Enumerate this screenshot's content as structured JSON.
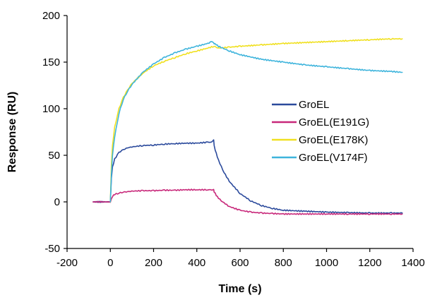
{
  "chart_data": {
    "type": "line",
    "title": "",
    "xlabel": "Time (s)",
    "ylabel": "Response (RU)",
    "xlim": [
      -200,
      1400
    ],
    "ylim": [
      -50,
      200
    ],
    "x_ticks": [
      -200,
      0,
      200,
      400,
      600,
      800,
      1000,
      1200,
      1400
    ],
    "y_ticks": [
      -50,
      0,
      50,
      100,
      150,
      200
    ],
    "grid": false,
    "legend_position": "right",
    "series": [
      {
        "name": "GroEL",
        "color": "#2b4a9c",
        "x": [
          -80,
          -10,
          0,
          5,
          10,
          20,
          40,
          60,
          80,
          100,
          150,
          200,
          250,
          300,
          350,
          400,
          450,
          470,
          478,
          480,
          490,
          500,
          520,
          550,
          600,
          650,
          700,
          750,
          800,
          900,
          1000,
          1100,
          1200,
          1300,
          1350
        ],
        "values": [
          0,
          0,
          0,
          25,
          37,
          46,
          53,
          56,
          58,
          59,
          60.5,
          61,
          62,
          62.5,
          63,
          63,
          64,
          64,
          66,
          60,
          52,
          45,
          34,
          22,
          9,
          1,
          -4,
          -7,
          -9,
          -10,
          -11,
          -11.5,
          -12,
          -12,
          -12
        ]
      },
      {
        "name": "GroEL(E191G)",
        "color": "#c8287a",
        "x": [
          -80,
          -10,
          0,
          5,
          10,
          20,
          40,
          60,
          80,
          100,
          150,
          200,
          250,
          300,
          350,
          400,
          450,
          470,
          478,
          480,
          490,
          500,
          520,
          550,
          600,
          650,
          700,
          750,
          800,
          900,
          1000,
          1100,
          1200,
          1300,
          1350
        ],
        "values": [
          0,
          0,
          0,
          4,
          6,
          8,
          9.5,
          10.5,
          11,
          11.5,
          12,
          12,
          12.5,
          12.5,
          13,
          13,
          13,
          13,
          14,
          11,
          7,
          4,
          0,
          -5,
          -9,
          -11,
          -12,
          -12.5,
          -13,
          -13,
          -13,
          -13,
          -13,
          -13,
          -13
        ]
      },
      {
        "name": "GroEL(E178K)",
        "color": "#f0e020",
        "x": [
          0,
          5,
          10,
          20,
          40,
          60,
          80,
          100,
          150,
          200,
          250,
          300,
          350,
          400,
          450,
          480,
          500,
          550,
          600,
          700,
          800,
          900,
          1000,
          1100,
          1200,
          1300,
          1350
        ],
        "values": [
          0,
          40,
          60,
          80,
          100,
          112,
          120,
          127,
          138,
          146,
          151,
          155,
          159,
          162,
          165,
          167,
          165,
          166,
          167,
          168.5,
          170,
          171,
          172,
          173,
          174,
          175,
          175
        ]
      },
      {
        "name": "GroEL(V174F)",
        "color": "#3eb4dc",
        "x": [
          0,
          5,
          10,
          20,
          40,
          60,
          80,
          100,
          150,
          200,
          250,
          300,
          350,
          400,
          450,
          470,
          478,
          480,
          490,
          500,
          550,
          600,
          700,
          800,
          900,
          1000,
          1100,
          1200,
          1300,
          1350
        ],
        "values": [
          0,
          30,
          50,
          70,
          95,
          110,
          119,
          126,
          139,
          148,
          155,
          160,
          164,
          167,
          170,
          172,
          171,
          170,
          169,
          167,
          162,
          158,
          153,
          150,
          147,
          145,
          143,
          141,
          140,
          139
        ]
      }
    ]
  }
}
